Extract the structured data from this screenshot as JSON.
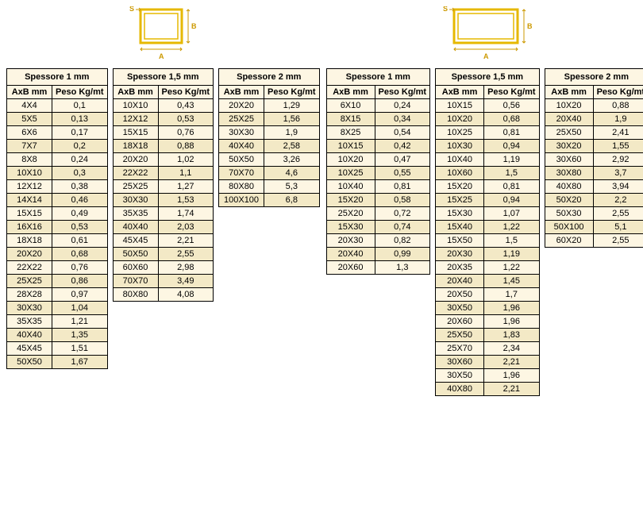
{
  "colors": {
    "accent": "#e6b800",
    "accent_dark": "#cc9900",
    "header_bg": "#fdf6e3",
    "row_bg": "#fdf6e3",
    "row_alt_bg": "#f3e9c6",
    "border": "#000000"
  },
  "labels": {
    "s": "S",
    "a": "A",
    "b": "B",
    "col_axb": "AxB mm",
    "col_peso": "Peso Kg/mt"
  },
  "groups": [
    {
      "shape": "square",
      "tables": [
        {
          "title": "Spessore 1 mm",
          "rows": [
            [
              "4X4",
              "0,1"
            ],
            [
              "5X5",
              "0,13"
            ],
            [
              "6X6",
              "0,17"
            ],
            [
              "7X7",
              "0,2"
            ],
            [
              "8X8",
              "0,24"
            ],
            [
              "10X10",
              "0,3"
            ],
            [
              "12X12",
              "0,38"
            ],
            [
              "14X14",
              "0,46"
            ],
            [
              "15X15",
              "0,49"
            ],
            [
              "16X16",
              "0,53"
            ],
            [
              "18X18",
              "0,61"
            ],
            [
              "20X20",
              "0,68"
            ],
            [
              "22X22",
              "0,76"
            ],
            [
              "25X25",
              "0,86"
            ],
            [
              "28X28",
              "0,97"
            ],
            [
              "30X30",
              "1,04"
            ],
            [
              "35X35",
              "1,21"
            ],
            [
              "40X40",
              "1,35"
            ],
            [
              "45X45",
              "1,51"
            ],
            [
              "50X50",
              "1,67"
            ]
          ]
        },
        {
          "title": "Spessore 1,5 mm",
          "rows": [
            [
              "10X10",
              "0,43"
            ],
            [
              "12X12",
              "0,53"
            ],
            [
              "15X15",
              "0,76"
            ],
            [
              "18X18",
              "0,88"
            ],
            [
              "20X20",
              "1,02"
            ],
            [
              "22X22",
              "1,1"
            ],
            [
              "25X25",
              "1,27"
            ],
            [
              "30X30",
              "1,53"
            ],
            [
              "35X35",
              "1,74"
            ],
            [
              "40X40",
              "2,03"
            ],
            [
              "45X45",
              "2,21"
            ],
            [
              "50X50",
              "2,55"
            ],
            [
              "60X60",
              "2,98"
            ],
            [
              "70X70",
              "3,49"
            ],
            [
              "80X80",
              "4,08"
            ]
          ]
        },
        {
          "title": "Spessore 2 mm",
          "rows": [
            [
              "20X20",
              "1,29"
            ],
            [
              "25X25",
              "1,56"
            ],
            [
              "30X30",
              "1,9"
            ],
            [
              "40X40",
              "2,58"
            ],
            [
              "50X50",
              "3,26"
            ],
            [
              "70X70",
              "4,6"
            ],
            [
              "80X80",
              "5,3"
            ],
            [
              "100X100",
              "6,8"
            ]
          ]
        }
      ]
    },
    {
      "shape": "rectangle",
      "tables": [
        {
          "title": "Spessore 1 mm",
          "rows": [
            [
              "6X10",
              "0,24"
            ],
            [
              "8X15",
              "0,34"
            ],
            [
              "8X25",
              "0,54"
            ],
            [
              "10X15",
              "0,42"
            ],
            [
              "10X20",
              "0,47"
            ],
            [
              "10X25",
              "0,55"
            ],
            [
              "10X40",
              "0,81"
            ],
            [
              "15X20",
              "0,58"
            ],
            [
              "25X20",
              "0,72"
            ],
            [
              "15X30",
              "0,74"
            ],
            [
              "20X30",
              "0,82"
            ],
            [
              "20X40",
              "0,99"
            ],
            [
              "20X60",
              "1,3"
            ]
          ]
        },
        {
          "title": "Spessore 1,5 mm",
          "rows": [
            [
              "10X15",
              "0,56"
            ],
            [
              "10X20",
              "0,68"
            ],
            [
              "10X25",
              "0,81"
            ],
            [
              "10X30",
              "0,94"
            ],
            [
              "10X40",
              "1,19"
            ],
            [
              "10X60",
              "1,5"
            ],
            [
              "15X20",
              "0,81"
            ],
            [
              "15X25",
              "0,94"
            ],
            [
              "15X30",
              "1,07"
            ],
            [
              "15X40",
              "1,22"
            ],
            [
              "15X50",
              "1,5"
            ],
            [
              "20X30",
              "1,19"
            ],
            [
              "20X35",
              "1,22"
            ],
            [
              "20X40",
              "1,45"
            ],
            [
              "20X50",
              "1,7"
            ],
            [
              "30X50",
              "1,96"
            ],
            [
              "20X60",
              "1,96"
            ],
            [
              "25X50",
              "1,83"
            ],
            [
              "25X70",
              "2,34"
            ],
            [
              "30X60",
              "2,21"
            ],
            [
              "30X50",
              "1,96"
            ],
            [
              "40X80",
              "2,21"
            ]
          ]
        },
        {
          "title": "Spessore 2 mm",
          "rows": [
            [
              "10X20",
              "0,88"
            ],
            [
              "20X40",
              "1,9"
            ],
            [
              "25X50",
              "2,41"
            ],
            [
              "30X20",
              "1,55"
            ],
            [
              "30X60",
              "2,92"
            ],
            [
              "30X80",
              "3,7"
            ],
            [
              "40X80",
              "3,94"
            ],
            [
              "50X20",
              "2,2"
            ],
            [
              "50X30",
              "2,55"
            ],
            [
              "50X100",
              "5,1"
            ],
            [
              "60X20",
              "2,55"
            ]
          ]
        }
      ]
    }
  ]
}
